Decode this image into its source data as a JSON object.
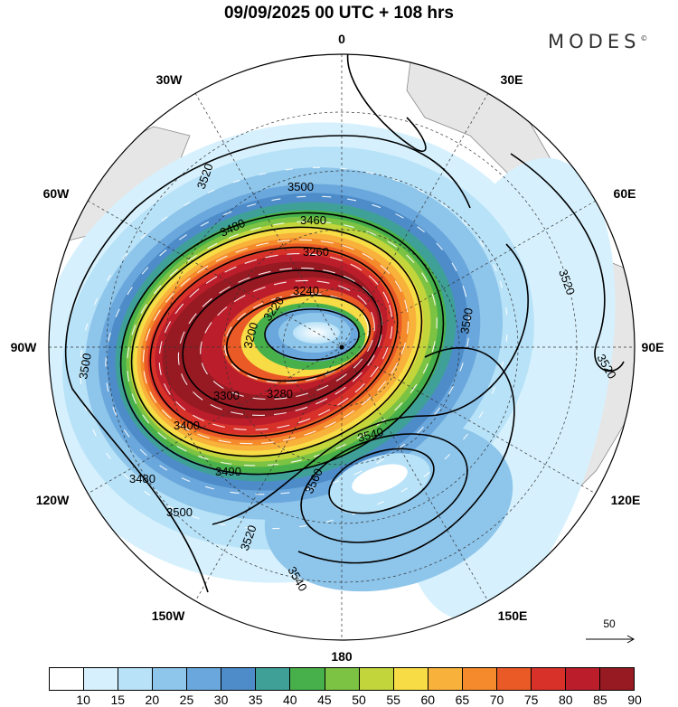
{
  "title": "09/09/2025  00 UTC  + 108 hrs",
  "brand": "MODES",
  "brand_mark": "©",
  "longitudes": [
    "0",
    "30E",
    "60E",
    "90E",
    "120E",
    "150E",
    "180",
    "150W",
    "120W",
    "90W",
    "60W",
    "30W"
  ],
  "contour_labels": [
    "3520",
    "3500",
    "3460",
    "3480",
    "3260",
    "3240",
    "3220",
    "3200",
    "3300",
    "3280",
    "3400",
    "3490",
    "3540",
    "3560",
    "3500",
    "3480",
    "3520",
    "3540",
    "3520",
    "3520",
    "3500",
    "3500"
  ],
  "vector_reference": "50",
  "colorbar": {
    "labels": [
      "10",
      "15",
      "20",
      "25",
      "30",
      "35",
      "40",
      "45",
      "50",
      "55",
      "60",
      "65",
      "70",
      "75",
      "80",
      "85",
      "90"
    ],
    "colors": [
      "#ffffff",
      "#d6f1fd",
      "#b8e2f8",
      "#8ec5ea",
      "#6aa7dc",
      "#4d8cc9",
      "#3fa098",
      "#47b04a",
      "#7cc243",
      "#c2d53b",
      "#f7dc46",
      "#f8b13b",
      "#f48a2b",
      "#ea5a26",
      "#d8312a",
      "#bb1e2a",
      "#971a23"
    ]
  },
  "colors": {
    "land": "#e6e6e6",
    "coast": "#8a8a8a",
    "contour": "#000000",
    "vector": "#ffffff"
  }
}
